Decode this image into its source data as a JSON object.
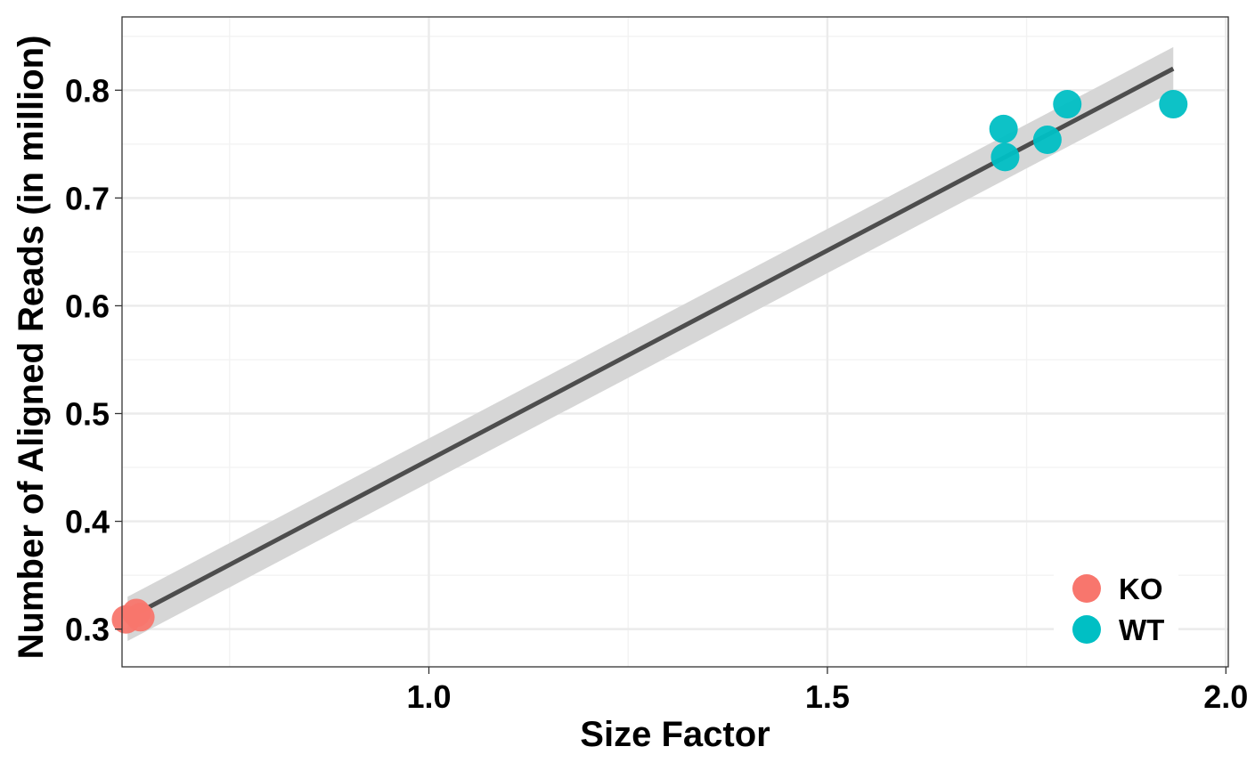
{
  "chart_data": {
    "type": "scatter",
    "xlabel": "Size Factor",
    "ylabel": "Number of Aligned Reads (in million)",
    "xlim": [
      0.615,
      2.003
    ],
    "ylim": [
      0.265,
      0.868
    ],
    "x_ticks": [
      1.0,
      1.5,
      2.0
    ],
    "x_tick_labels": [
      "1.0",
      "1.5",
      "2.0"
    ],
    "x_minor_ticks": [
      0.75,
      1.25,
      1.75
    ],
    "y_ticks": [
      0.3,
      0.4,
      0.5,
      0.6,
      0.7,
      0.8
    ],
    "y_tick_labels": [
      "0.3",
      "0.4",
      "0.5",
      "0.6",
      "0.7",
      "0.8"
    ],
    "y_minor_ticks": [
      0.35,
      0.45,
      0.55,
      0.65,
      0.75,
      0.85
    ],
    "grid": true,
    "legend_position": "bottom-right",
    "series": [
      {
        "name": "KO",
        "color": "#F8766D",
        "points": [
          {
            "x": 0.62,
            "y": 0.309
          },
          {
            "x": 0.633,
            "y": 0.315
          },
          {
            "x": 0.638,
            "y": 0.311
          }
        ]
      },
      {
        "name": "WT",
        "color": "#00BFC4",
        "points": [
          {
            "x": 1.721,
            "y": 0.764
          },
          {
            "x": 1.723,
            "y": 0.738
          },
          {
            "x": 1.776,
            "y": 0.754
          },
          {
            "x": 1.801,
            "y": 0.787
          },
          {
            "x": 1.934,
            "y": 0.787
          }
        ]
      }
    ],
    "fit": {
      "method": "linear",
      "color": "#4D4D4D",
      "band_color": "#D6D6D6",
      "x_start": 0.622,
      "x_end": 1.934,
      "line": [
        {
          "x": 0.622,
          "y": 0.31
        },
        {
          "x": 1.934,
          "y": 0.82
        }
      ],
      "band_upper": [
        {
          "x": 0.622,
          "y": 0.33
        },
        {
          "x": 1.934,
          "y": 0.84
        }
      ],
      "band_lower": [
        {
          "x": 0.622,
          "y": 0.289
        },
        {
          "x": 1.934,
          "y": 0.799
        }
      ]
    }
  }
}
